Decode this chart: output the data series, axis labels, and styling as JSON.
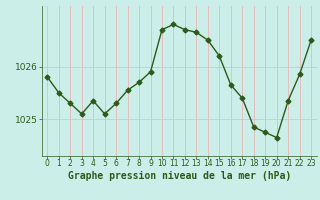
{
  "hours": [
    0,
    1,
    2,
    3,
    4,
    5,
    6,
    7,
    8,
    9,
    10,
    11,
    12,
    13,
    14,
    15,
    16,
    17,
    18,
    19,
    20,
    21,
    22,
    23
  ],
  "pressure": [
    1025.8,
    1025.5,
    1025.3,
    1025.1,
    1025.35,
    1025.1,
    1025.3,
    1025.55,
    1025.7,
    1025.9,
    1026.7,
    1026.8,
    1026.7,
    1026.65,
    1026.5,
    1026.2,
    1025.65,
    1025.4,
    1024.85,
    1024.75,
    1024.65,
    1025.35,
    1025.85,
    1026.5
  ],
  "line_color": "#2d5a1b",
  "marker": "D",
  "marker_size": 2.5,
  "bg_color": "#cceee8",
  "hgrid_color": "#b0d4ce",
  "vgrid_color": "#e8b8b8",
  "xlabel": "Graphe pression niveau de la mer (hPa)",
  "xlabel_color": "#2d5a1b",
  "tick_color": "#2d5a1b",
  "ylim": [
    1024.3,
    1027.15
  ],
  "yticks": [
    1025.0,
    1026.0
  ],
  "ylabel_fontsize": 6.5,
  "xlabel_fontsize": 7.0,
  "xtick_fontsize": 5.5
}
